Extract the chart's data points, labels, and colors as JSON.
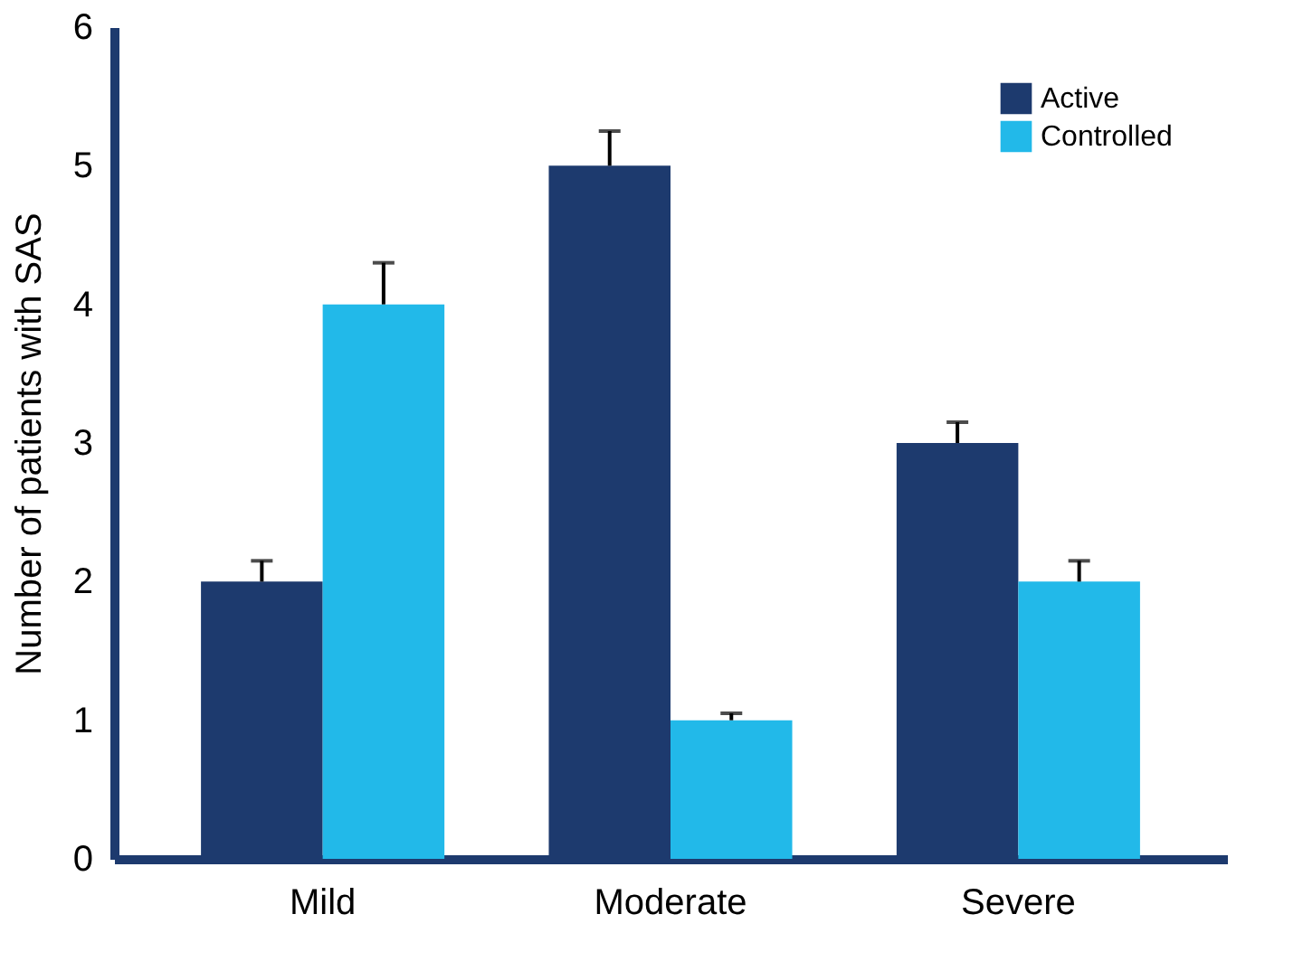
{
  "chart_data": {
    "type": "bar",
    "ylabel": "Number of patients with SAS",
    "categories": [
      "Mild",
      "Moderate",
      "Severe"
    ],
    "series": [
      {
        "name": "Active",
        "color": "#1d3a6e",
        "values": [
          2,
          5,
          3
        ],
        "errors": [
          [
            2,
            2.15
          ],
          [
            5,
            5.25
          ],
          [
            3,
            3.15
          ]
        ]
      },
      {
        "name": "Controlled",
        "color": "#22b9e9",
        "values": [
          4,
          1,
          2
        ],
        "errors": [
          [
            4,
            4.3
          ],
          [
            1,
            1.05
          ],
          [
            2,
            2.15
          ]
        ]
      }
    ],
    "ylim": [
      0,
      6
    ],
    "yticks": [
      0,
      1,
      2,
      3,
      4,
      5,
      6
    ],
    "grid": false,
    "legend": "top right"
  }
}
